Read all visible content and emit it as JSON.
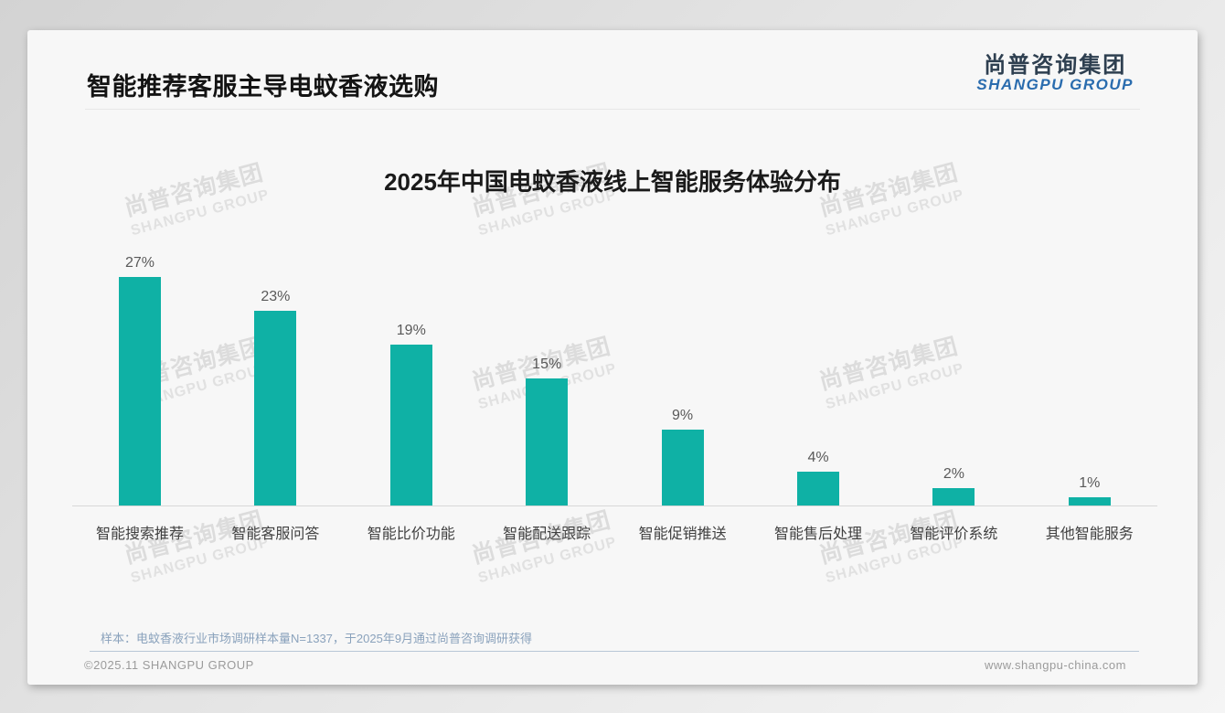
{
  "page_title": "智能推荐客服主导电蚊香液选购",
  "logo": {
    "cn": "尚普咨询集团",
    "en": "SHANGPU GROUP"
  },
  "watermark": {
    "line1": "尚普咨询集团",
    "line2": "SHANGPU GROUP"
  },
  "chart_data": {
    "type": "bar",
    "title": "2025年中国电蚊香液线上智能服务体验分布",
    "categories": [
      "智能搜索推荐",
      "智能客服问答",
      "智能比价功能",
      "智能配送跟踪",
      "智能促销推送",
      "智能售后处理",
      "智能评价系统",
      "其他智能服务"
    ],
    "values": [
      27,
      23,
      19,
      15,
      9,
      4,
      2,
      1
    ],
    "data_labels": [
      "27%",
      "23%",
      "19%",
      "15%",
      "9%",
      "4%",
      "2%",
      "1%"
    ],
    "unit": "%",
    "xlabel": "",
    "ylabel": "",
    "ylim": [
      0,
      30
    ],
    "grid": false,
    "legend": null,
    "bar_color": "#0fb1a5"
  },
  "footnote": "样本：电蚊香液行业市场调研样本量N=1337，于2025年9月通过尚普咨询调研获得",
  "footer": {
    "left": "©2025.11 SHANGPU GROUP",
    "right": "www.shangpu-china.com"
  },
  "colors": {
    "bar": "#0fb1a5",
    "logo_blue": "#2a6cae",
    "footnote_blue_gray": "#8aa2bc"
  }
}
